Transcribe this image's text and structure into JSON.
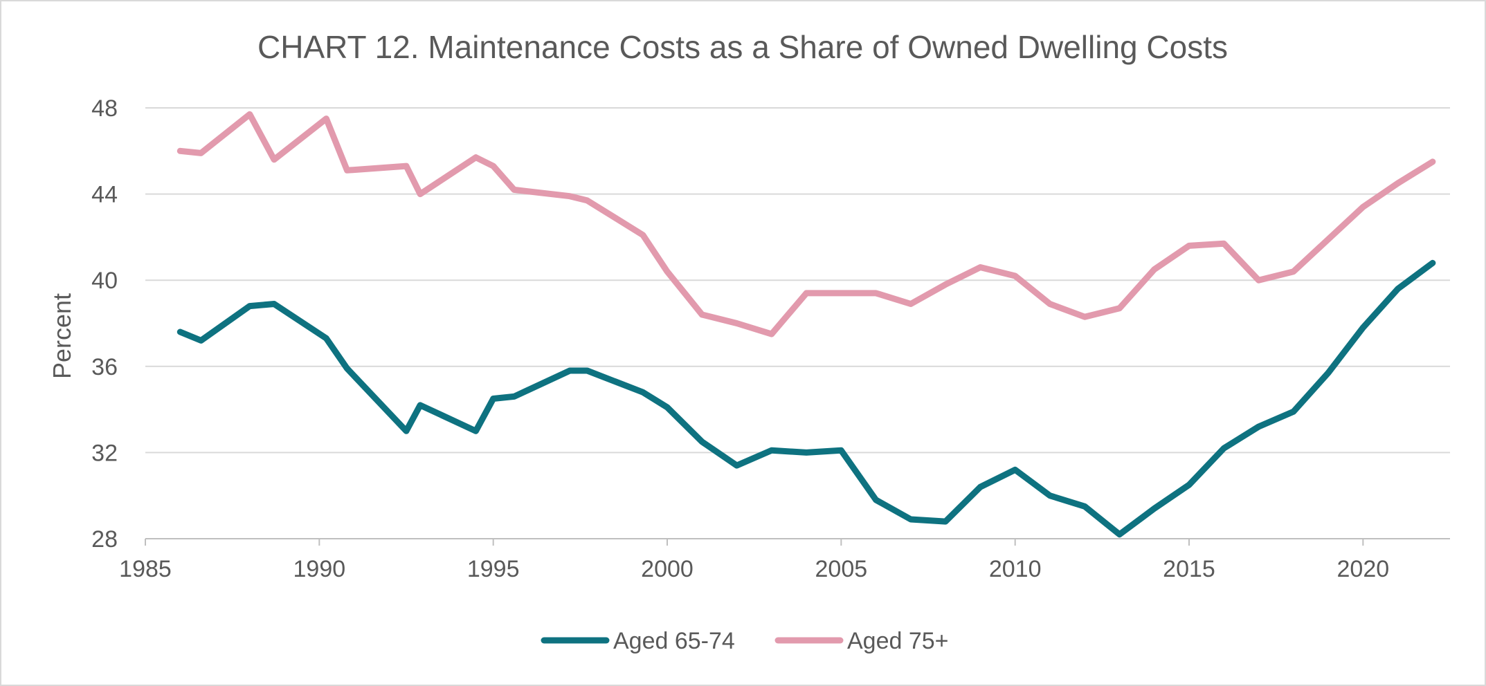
{
  "chart_data": {
    "type": "line",
    "title": "CHART 12. Maintenance Costs as a Share of Owned Dwelling Costs",
    "xlabel": "",
    "ylabel": "Percent",
    "xlim": [
      1985,
      2022.5
    ],
    "ylim": [
      28,
      48
    ],
    "x_ticks": [
      1985,
      1990,
      1995,
      2000,
      2005,
      2010,
      2015,
      2020
    ],
    "y_ticks": [
      28,
      32,
      36,
      40,
      44,
      48
    ],
    "grid": true,
    "legend_position": "bottom",
    "series": [
      {
        "name": "Aged 65-74",
        "color": "#0e7280",
        "points": [
          [
            1986.0,
            37.6
          ],
          [
            1986.6,
            37.2
          ],
          [
            1988.0,
            38.8
          ],
          [
            1988.7,
            38.9
          ],
          [
            1990.2,
            37.3
          ],
          [
            1990.8,
            35.9
          ],
          [
            1992.5,
            33.0
          ],
          [
            1992.9,
            34.2
          ],
          [
            1994.5,
            33.0
          ],
          [
            1995.0,
            34.5
          ],
          [
            1995.6,
            34.6
          ],
          [
            1997.2,
            35.8
          ],
          [
            1997.7,
            35.8
          ],
          [
            1999.3,
            34.8
          ],
          [
            2000.0,
            34.1
          ],
          [
            2001.0,
            32.5
          ],
          [
            2002.0,
            31.4
          ],
          [
            2003.0,
            32.1
          ],
          [
            2004.0,
            32.0
          ],
          [
            2005.0,
            32.1
          ],
          [
            2006.0,
            29.8
          ],
          [
            2007.0,
            28.9
          ],
          [
            2008.0,
            28.8
          ],
          [
            2009.0,
            30.4
          ],
          [
            2010.0,
            31.2
          ],
          [
            2011.0,
            30.0
          ],
          [
            2012.0,
            29.5
          ],
          [
            2013.0,
            28.2
          ],
          [
            2014.0,
            29.4
          ],
          [
            2015.0,
            30.5
          ],
          [
            2016.0,
            32.2
          ],
          [
            2017.0,
            33.2
          ],
          [
            2018.0,
            33.9
          ],
          [
            2019.0,
            35.7
          ],
          [
            2020.0,
            37.8
          ],
          [
            2021.0,
            39.6
          ],
          [
            2022.0,
            40.8
          ]
        ]
      },
      {
        "name": "Aged 75+",
        "color": "#e29aad",
        "points": [
          [
            1986.0,
            46.0
          ],
          [
            1986.6,
            45.9
          ],
          [
            1988.0,
            47.7
          ],
          [
            1988.7,
            45.6
          ],
          [
            1990.2,
            47.5
          ],
          [
            1990.8,
            45.1
          ],
          [
            1992.5,
            45.3
          ],
          [
            1992.9,
            44.0
          ],
          [
            1994.5,
            45.7
          ],
          [
            1995.0,
            45.3
          ],
          [
            1995.6,
            44.2
          ],
          [
            1997.2,
            43.9
          ],
          [
            1997.7,
            43.7
          ],
          [
            1999.3,
            42.1
          ],
          [
            2000.0,
            40.4
          ],
          [
            2001.0,
            38.4
          ],
          [
            2002.0,
            38.0
          ],
          [
            2003.0,
            37.5
          ],
          [
            2004.0,
            39.4
          ],
          [
            2005.0,
            39.4
          ],
          [
            2006.0,
            39.4
          ],
          [
            2007.0,
            38.9
          ],
          [
            2008.0,
            39.8
          ],
          [
            2009.0,
            40.6
          ],
          [
            2010.0,
            40.2
          ],
          [
            2011.0,
            38.9
          ],
          [
            2012.0,
            38.3
          ],
          [
            2013.0,
            38.7
          ],
          [
            2014.0,
            40.5
          ],
          [
            2015.0,
            41.6
          ],
          [
            2016.0,
            41.7
          ],
          [
            2017.0,
            40.0
          ],
          [
            2018.0,
            40.4
          ],
          [
            2019.0,
            41.9
          ],
          [
            2020.0,
            43.4
          ],
          [
            2021.0,
            44.5
          ],
          [
            2022.0,
            45.5
          ]
        ]
      }
    ]
  }
}
